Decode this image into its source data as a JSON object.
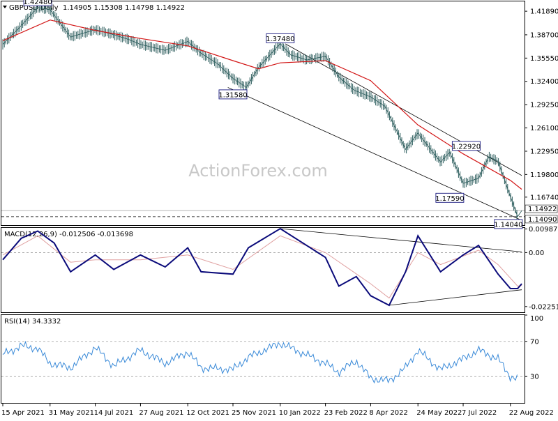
{
  "header": {
    "symbol": "GBPUSD,Daily",
    "ohlc": "1.14905 1.15308 1.14798 1.14922"
  },
  "watermark": "ActionForex.com",
  "colors": {
    "price": "#2e5e5e",
    "ma": "#d21414",
    "macd": "#0a0a7a",
    "signal": "#e0a0a0",
    "rsi": "#3a8ad8",
    "label_border": "#1a1a80",
    "grid": "#888888"
  },
  "chart_data": [
    {
      "type": "line",
      "panel": "price",
      "title": "GBPUSD,Daily",
      "ylim": [
        1.1295,
        1.4322
      ],
      "yticks": [
        "1.41890",
        "1.38700",
        "1.35550",
        "1.32400",
        "1.29250",
        "1.26100",
        "1.22950",
        "1.19800",
        "1.16740"
      ],
      "current_labels": [
        "1.14922",
        "1.14090"
      ],
      "xticks": [
        "15 Apr 2021",
        "31 May 2021",
        "14 Jul 2021",
        "27 Aug 2021",
        "12 Oct 2021",
        "25 Nov 2021",
        "10 Jan 2022",
        "23 Feb 2022",
        "8 Apr 2022",
        "24 May 2022",
        "7 Jul 2022",
        "22 Aug 2022"
      ],
      "series": [
        {
          "x": [
            "15 Apr 2021",
            "30 Apr 2021",
            "19 May 2021",
            "31 May 2021",
            "20 Jun 2021",
            "14 Jul 2021",
            "30 Jul 2021",
            "15 Aug 2021",
            "27 Aug 2021",
            "20 Sep 2021",
            "12 Oct 2021",
            "25 Oct 2021",
            "10 Nov 2021",
            "25 Nov 2021",
            "8 Dec 2021",
            "20 Dec 2021",
            "10 Jan 2022",
            "20 Jan 2022",
            "5 Feb 2022",
            "23 Feb 2022",
            "8 Mar 2022",
            "23 Mar 2022",
            "8 Apr 2022",
            "22 Apr 2022",
            "12 May 2022",
            "24 May 2022",
            "15 Jun 2022",
            "24 Jun 2022",
            "7 Jul 2022",
            "22 Jul 2022",
            "1 Aug 2022",
            "10 Aug 2022",
            "22 Aug 2022",
            "29 Aug 2022",
            "2 Sep 2022"
          ],
          "values": [
            1.374,
            1.395,
            1.424,
            1.421,
            1.384,
            1.394,
            1.388,
            1.381,
            1.374,
            1.366,
            1.378,
            1.362,
            1.348,
            1.328,
            1.316,
            1.343,
            1.375,
            1.36,
            1.353,
            1.358,
            1.33,
            1.312,
            1.303,
            1.29,
            1.232,
            1.254,
            1.215,
            1.228,
            1.186,
            1.193,
            1.222,
            1.216,
            1.168,
            1.141,
            1.149
          ]
        },
        {
          "x": [
            "15 Apr 2021",
            "31 May 2021",
            "14 Jul 2021",
            "27 Aug 2021",
            "12 Oct 2021",
            "25 Nov 2021",
            "20 Dec 2021",
            "10 Jan 2022",
            "23 Feb 2022",
            "8 Apr 2022",
            "24 May 2022",
            "7 Jul 2022",
            "22 Aug 2022",
            "2 Sep 2022"
          ],
          "values": [
            1.379,
            1.407,
            1.393,
            1.382,
            1.372,
            1.352,
            1.341,
            1.349,
            1.352,
            1.325,
            1.265,
            1.226,
            1.19,
            1.178
          ]
        }
      ],
      "annotations": [
        "1.42480",
        "1.37480",
        "1.31580",
        "1.22920",
        "1.17590",
        "1.14040"
      ]
    },
    {
      "type": "line",
      "panel": "macd",
      "title": "MACD(12,26,9) -0.012506 -0.013698",
      "ylim": [
        -0.0249,
        0.0103
      ],
      "yticks": [
        "0.009872",
        "0.00",
        "-0.022516"
      ],
      "series": [
        {
          "x": [
            "15 Apr 2021",
            "3 May 2021",
            "19 May 2021",
            "4 Jun 2021",
            "20 Jun 2021",
            "14 Jul 2021",
            "1 Aug 2021",
            "27 Aug 2021",
            "20 Sep 2021",
            "12 Oct 2021",
            "25 Oct 2021",
            "25 Nov 2021",
            "10 Dec 2021",
            "10 Jan 2022",
            "23 Feb 2022",
            "8 Mar 2022",
            "25 Mar 2022",
            "8 Apr 2022",
            "26 Apr 2022",
            "12 May 2022",
            "24 May 2022",
            "15 Jun 2022",
            "7 Jul 2022",
            "22 Jul 2022",
            "10 Aug 2022",
            "22 Aug 2022",
            "29 Aug 2022",
            "2 Sep 2022"
          ],
          "values": [
            -0.003,
            0.006,
            0.009,
            0.004,
            -0.008,
            -0.001,
            -0.007,
            -0.001,
            -0.006,
            0.002,
            -0.008,
            -0.009,
            0.002,
            0.01,
            -0.002,
            -0.014,
            -0.01,
            -0.018,
            -0.022,
            -0.008,
            0.007,
            -0.008,
            -0.001,
            0.003,
            -0.009,
            -0.015,
            -0.015,
            -0.013
          ]
        },
        {
          "x": [
            "15 Apr 2021",
            "19 May 2021",
            "20 Jun 2021",
            "14 Jul 2021",
            "27 Aug 2021",
            "12 Oct 2021",
            "25 Nov 2021",
            "10 Jan 2022",
            "23 Feb 2022",
            "8 Apr 2022",
            "26 Apr 2022",
            "24 May 2022",
            "15 Jun 2022",
            "22 Jul 2022",
            "10 Aug 2022",
            "29 Aug 2022",
            "2 Sep 2022"
          ],
          "values": [
            -0.001,
            0.007,
            -0.004,
            -0.003,
            -0.003,
            -0.001,
            -0.007,
            0.007,
            0.0,
            -0.013,
            -0.019,
            0.0,
            -0.005,
            0.001,
            -0.005,
            -0.014,
            -0.0137
          ]
        }
      ]
    },
    {
      "type": "line",
      "panel": "rsi",
      "title": "RSI(14) 34.3332",
      "ylim": [
        0,
        100
      ],
      "yticks": [
        "100",
        "70",
        "30",
        "0"
      ],
      "series": [
        {
          "x": [
            "15 Apr 2021",
            "3 May 2021",
            "19 May 2021",
            "31 May 2021",
            "20 Jun 2021",
            "14 Jul 2021",
            "1 Aug 2021",
            "27 Aug 2021",
            "20 Sep 2021",
            "12 Oct 2021",
            "25 Oct 2021",
            "25 Nov 2021",
            "10 Dec 2021",
            "10 Jan 2022",
            "23 Feb 2022",
            "8 Mar 2022",
            "25 Mar 2022",
            "8 Apr 2022",
            "26 Apr 2022",
            "12 May 2022",
            "24 May 2022",
            "15 Jun 2022",
            "7 Jul 2022",
            "22 Jul 2022",
            "10 Aug 2022",
            "22 Aug 2022",
            "29 Aug 2022",
            "2 Sep 2022"
          ],
          "values": [
            55,
            65,
            62,
            45,
            40,
            63,
            42,
            60,
            45,
            58,
            40,
            38,
            52,
            68,
            45,
            35,
            48,
            28,
            25,
            40,
            60,
            38,
            50,
            60,
            50,
            30,
            27,
            34
          ]
        }
      ]
    }
  ]
}
